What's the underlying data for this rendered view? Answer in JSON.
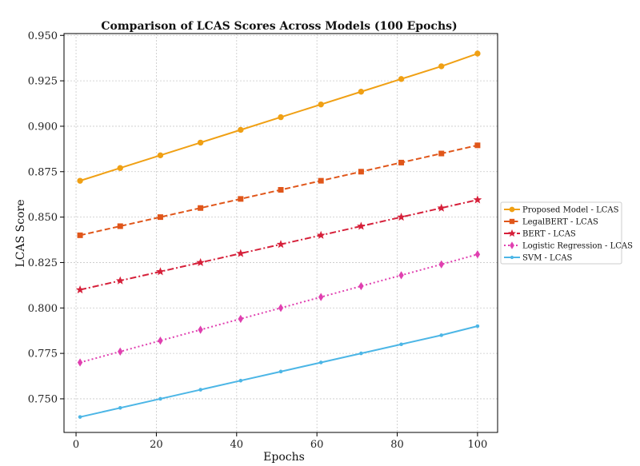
{
  "chart_data": {
    "type": "line",
    "title": "Comparison of LCAS Scores Across Models (100 Epochs)",
    "xlabel": "Epochs",
    "ylabel": "LCAS Score",
    "xlim": [
      -3,
      105
    ],
    "ylim": [
      0.7315,
      0.951
    ],
    "xticks": [
      0,
      20,
      40,
      60,
      80,
      100
    ],
    "yticks": [
      0.75,
      0.775,
      0.8,
      0.825,
      0.85,
      0.875,
      0.9,
      0.925,
      0.95
    ],
    "ytick_labels": [
      "0.750",
      "0.775",
      "0.800",
      "0.825",
      "0.850",
      "0.875",
      "0.900",
      "0.925",
      "0.950"
    ],
    "grid": true,
    "legend_position": "center-right, outside plot",
    "series": [
      {
        "name": "Proposed Model - LCAS",
        "color": "#f0a014",
        "linestyle": "solid",
        "marker": "circle",
        "x": [
          1,
          11,
          21,
          31,
          41,
          51,
          61,
          71,
          81,
          91,
          100
        ],
        "y": [
          0.87,
          0.877,
          0.884,
          0.891,
          0.898,
          0.905,
          0.912,
          0.919,
          0.926,
          0.933,
          0.94
        ]
      },
      {
        "name": "LegalBERT - LCAS",
        "color": "#e0561a",
        "linestyle": "dashed",
        "marker": "square",
        "x": [
          1,
          11,
          21,
          31,
          41,
          51,
          61,
          71,
          81,
          91,
          100
        ],
        "y": [
          0.84,
          0.845,
          0.85,
          0.855,
          0.86,
          0.865,
          0.87,
          0.875,
          0.88,
          0.885,
          0.8895
        ]
      },
      {
        "name": "BERT - LCAS",
        "color": "#d6203a",
        "linestyle": "dashdot",
        "marker": "star",
        "x": [
          1,
          11,
          21,
          31,
          41,
          51,
          61,
          71,
          81,
          91,
          100
        ],
        "y": [
          0.81,
          0.815,
          0.82,
          0.825,
          0.83,
          0.835,
          0.84,
          0.845,
          0.85,
          0.855,
          0.8595
        ]
      },
      {
        "name": "Logistic Regression - LCAS",
        "color": "#e040b0",
        "linestyle": "dotted",
        "marker": "diamond",
        "x": [
          1,
          11,
          21,
          31,
          41,
          51,
          61,
          71,
          81,
          91,
          100
        ],
        "y": [
          0.77,
          0.776,
          0.782,
          0.788,
          0.794,
          0.8,
          0.806,
          0.812,
          0.818,
          0.824,
          0.8295
        ]
      },
      {
        "name": "SVM - LCAS",
        "color": "#4cb6e6",
        "linestyle": "solid",
        "marker": "point",
        "x": [
          1,
          11,
          21,
          31,
          41,
          51,
          61,
          71,
          81,
          91,
          100
        ],
        "y": [
          0.74,
          0.745,
          0.75,
          0.755,
          0.76,
          0.765,
          0.77,
          0.775,
          0.78,
          0.785,
          0.79
        ]
      }
    ]
  }
}
